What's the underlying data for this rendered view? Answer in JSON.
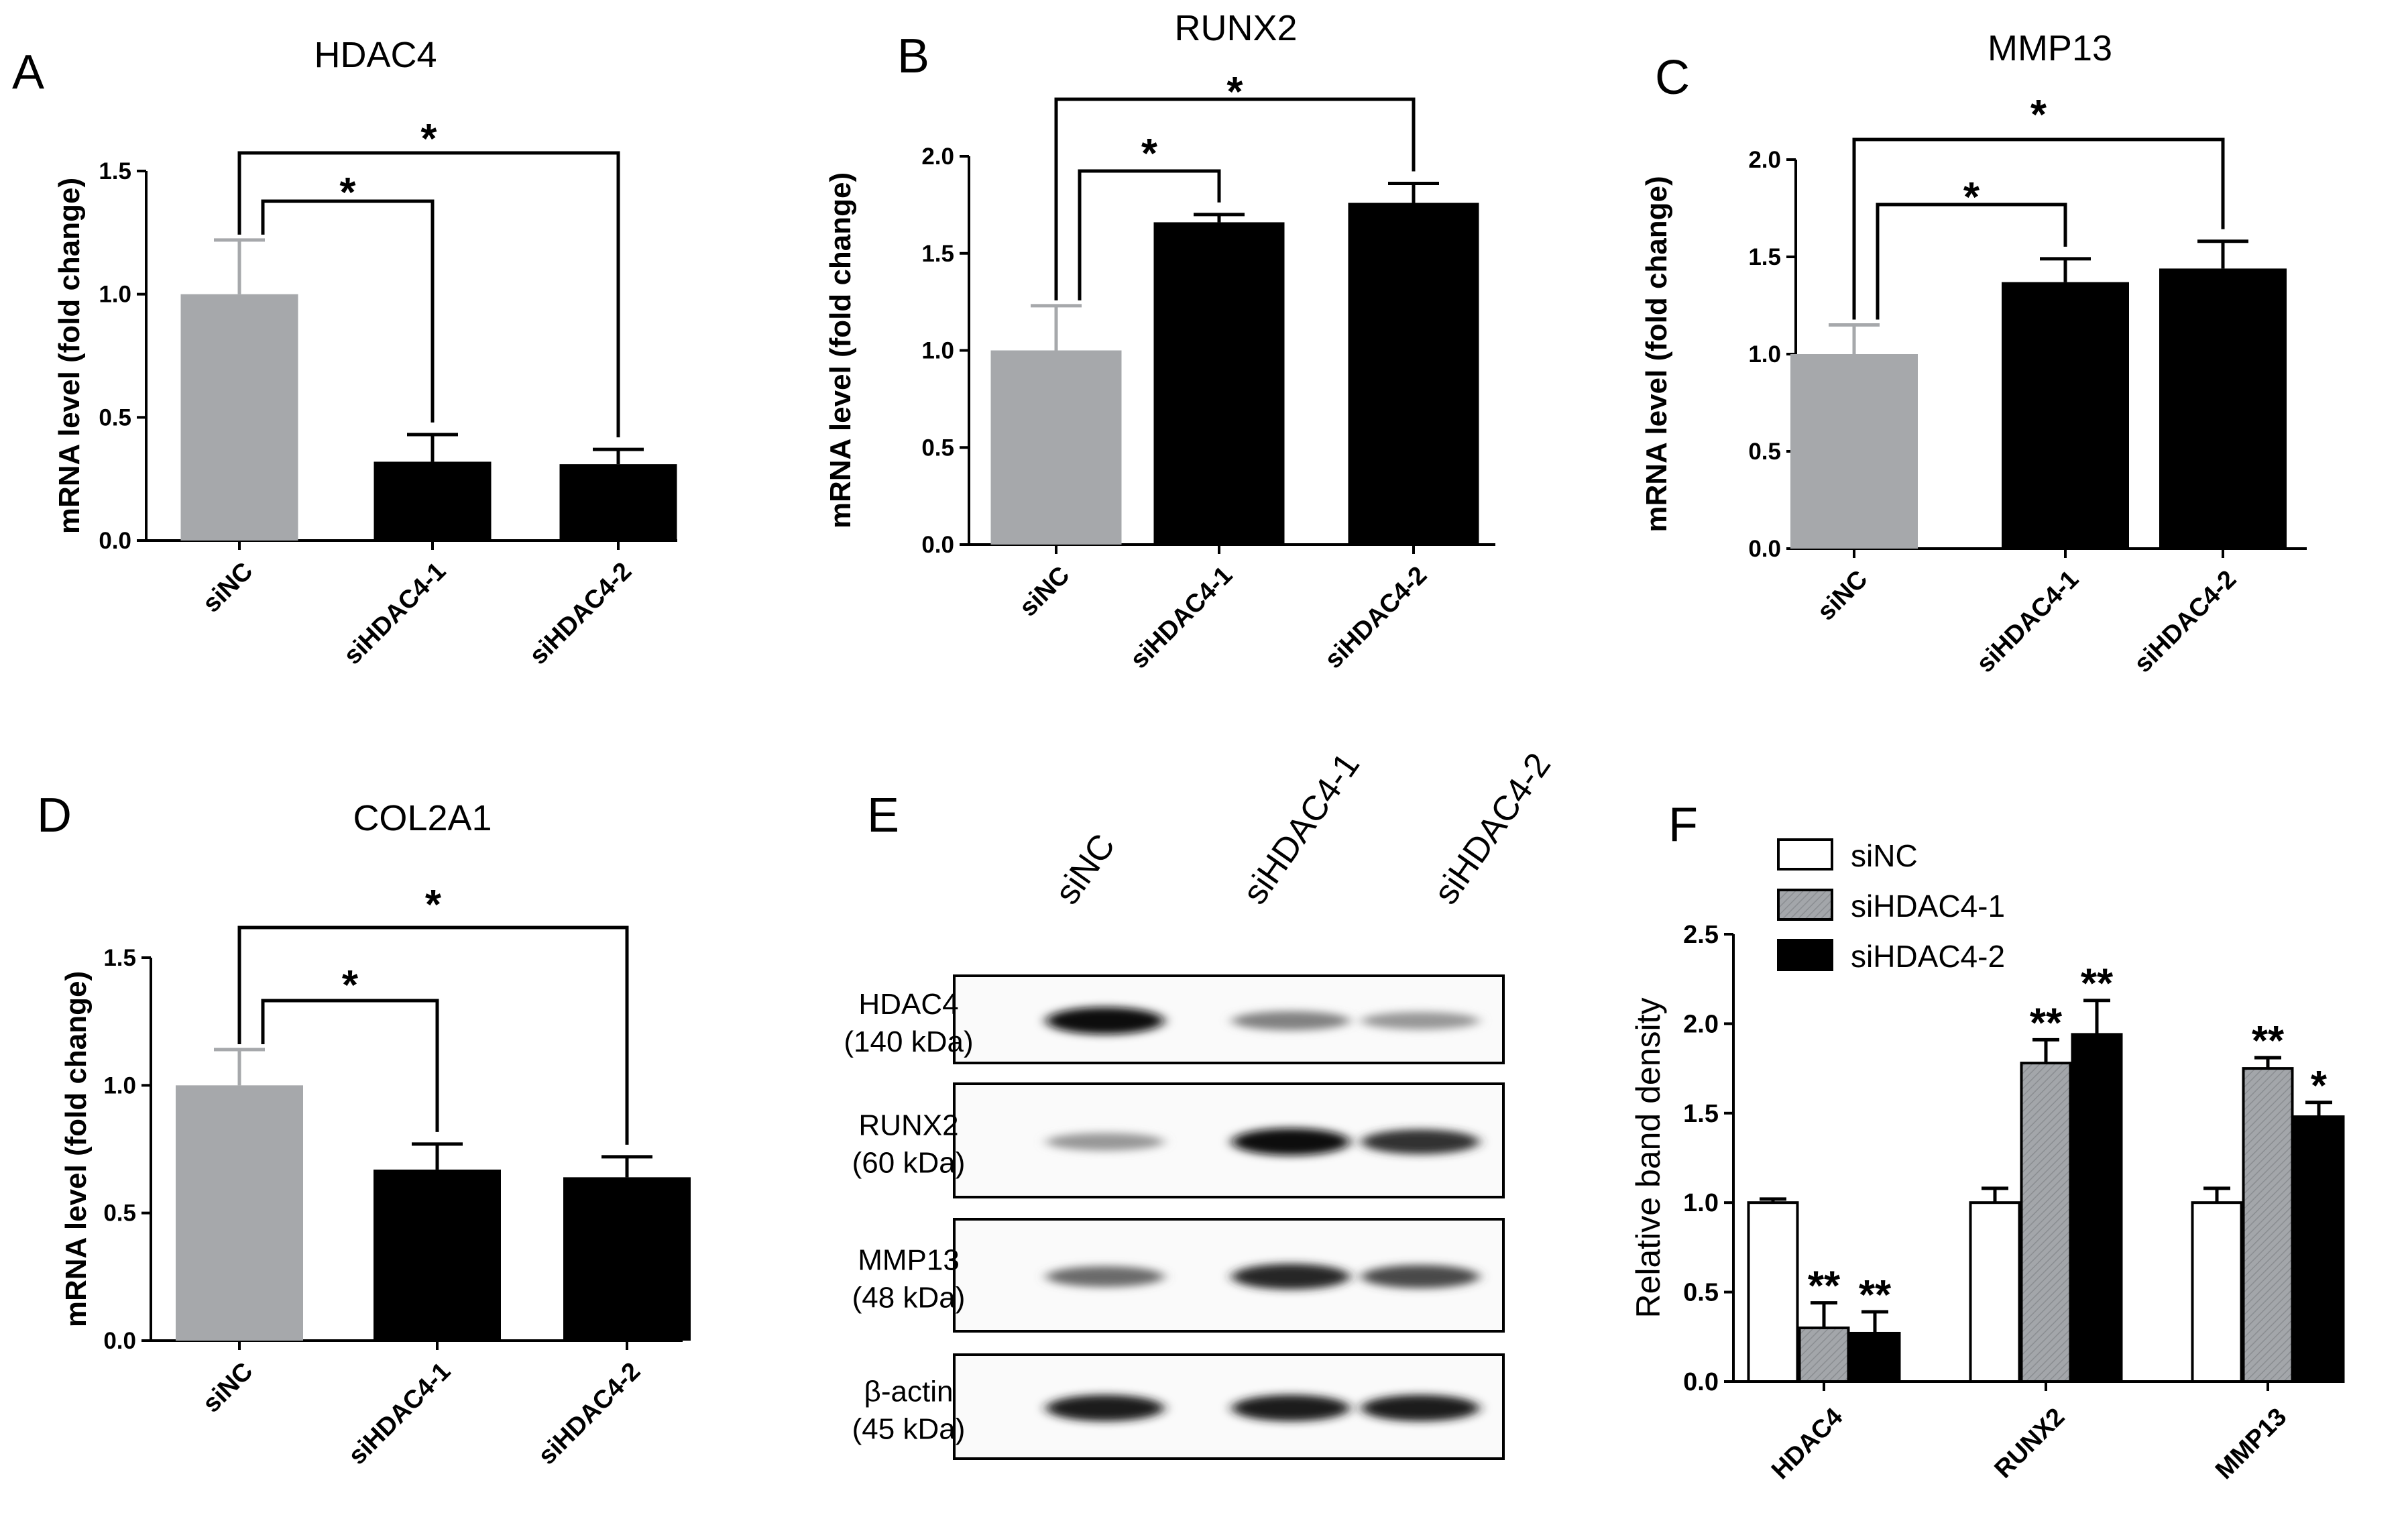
{
  "colors": {
    "gray": "#a6a8ab",
    "black": "#000000",
    "white": "#ffffff",
    "hatch": "#9b9ea2"
  },
  "chart_data": [
    {
      "id": "A",
      "type": "bar",
      "title": "HDAC4",
      "ylabel": "mRNA level (fold change)",
      "categories": [
        "siNC",
        "siHDAC4-1",
        "siHDAC4-2"
      ],
      "values": [
        1.0,
        0.32,
        0.31
      ],
      "errors": [
        0.22,
        0.11,
        0.06
      ],
      "bar_colors": [
        "gray",
        "black",
        "black"
      ],
      "ylim": [
        0,
        1.5
      ],
      "yticks": [
        "0.0",
        "0.5",
        "1.0",
        "1.5"
      ],
      "brackets": [
        {
          "from": 0,
          "to": 1,
          "label": "*"
        },
        {
          "from": 0,
          "to": 2,
          "label": "*"
        }
      ]
    },
    {
      "id": "B",
      "type": "bar",
      "title": "RUNX2",
      "ylabel": "mRNA level (fold change)",
      "categories": [
        "siNC",
        "siHDAC4-1",
        "siHDAC4-2"
      ],
      "values": [
        1.0,
        1.66,
        1.76
      ],
      "errors": [
        0.23,
        0.04,
        0.1
      ],
      "bar_colors": [
        "gray",
        "black",
        "black"
      ],
      "ylim": [
        0,
        2.0
      ],
      "yticks": [
        "0.0",
        "0.5",
        "1.0",
        "1.5",
        "2.0"
      ],
      "brackets": [
        {
          "from": 0,
          "to": 1,
          "label": "*"
        },
        {
          "from": 0,
          "to": 2,
          "label": "*"
        }
      ]
    },
    {
      "id": "C",
      "type": "bar",
      "title": "MMP13",
      "ylabel": "mRNA level (fold change)",
      "categories": [
        "siNC",
        "siHDAC4-1",
        "siHDAC4-2"
      ],
      "values": [
        1.0,
        1.37,
        1.44
      ],
      "errors": [
        0.15,
        0.12,
        0.14
      ],
      "bar_colors": [
        "gray",
        "black",
        "black"
      ],
      "ylim": [
        0,
        2.0
      ],
      "yticks": [
        "0.0",
        "0.5",
        "1.0",
        "1.5",
        "2.0"
      ],
      "brackets": [
        {
          "from": 0,
          "to": 1,
          "label": "*"
        },
        {
          "from": 0,
          "to": 2,
          "label": "*"
        }
      ]
    },
    {
      "id": "D",
      "type": "bar",
      "title": "COL2A1",
      "ylabel": "mRNA level (fold change)",
      "categories": [
        "siNC",
        "siHDAC4-1",
        "siHDAC4-2"
      ],
      "values": [
        1.0,
        0.67,
        0.64
      ],
      "errors": [
        0.14,
        0.1,
        0.08
      ],
      "bar_colors": [
        "gray",
        "black",
        "black"
      ],
      "ylim": [
        0,
        1.5
      ],
      "yticks": [
        "0.0",
        "0.5",
        "1.0",
        "1.5"
      ],
      "brackets": [
        {
          "from": 0,
          "to": 1,
          "label": "*"
        },
        {
          "from": 0,
          "to": 2,
          "label": "*"
        }
      ]
    },
    {
      "id": "F",
      "type": "bar",
      "ylabel": "Relative band density",
      "categories": [
        "HDAC4",
        "RUNX2",
        "MMP13"
      ],
      "series": [
        {
          "name": "siNC",
          "values": [
            1.0,
            1.0,
            1.0
          ],
          "errors": [
            0.02,
            0.08,
            0.08
          ],
          "color": "white",
          "labels": [
            "",
            "",
            ""
          ]
        },
        {
          "name": "siHDAC4-1",
          "values": [
            0.3,
            1.78,
            1.75
          ],
          "errors": [
            0.14,
            0.13,
            0.06
          ],
          "color": "hatch",
          "labels": [
            "**",
            "**",
            "**"
          ]
        },
        {
          "name": "siHDAC4-2",
          "values": [
            0.27,
            1.94,
            1.48
          ],
          "errors": [
            0.12,
            0.19,
            0.08
          ],
          "color": "black",
          "labels": [
            "**",
            "**",
            "*"
          ]
        }
      ],
      "ylim": [
        0,
        2.5
      ],
      "yticks": [
        "0.0",
        "0.5",
        "1.0",
        "1.5",
        "2.0",
        "2.5"
      ],
      "legend_placement": "top-left"
    }
  ],
  "western_blot": {
    "panel_label": "E",
    "lanes": [
      "siNC",
      "siHDAC4-1",
      "siHDAC4-2"
    ],
    "rows": [
      {
        "name": "HDAC4",
        "size": "(140 kDa)",
        "intensity": [
          0.95,
          0.45,
          0.35
        ]
      },
      {
        "name": "RUNX2",
        "size": "(60 kDa)",
        "intensity": [
          0.35,
          0.95,
          0.8
        ]
      },
      {
        "name": "MMP13",
        "size": "(48 kDa)",
        "intensity": [
          0.55,
          0.85,
          0.7
        ]
      },
      {
        "name": "β-actin",
        "size": "(45 kDa)",
        "intensity": [
          0.9,
          0.9,
          0.9
        ]
      }
    ]
  }
}
